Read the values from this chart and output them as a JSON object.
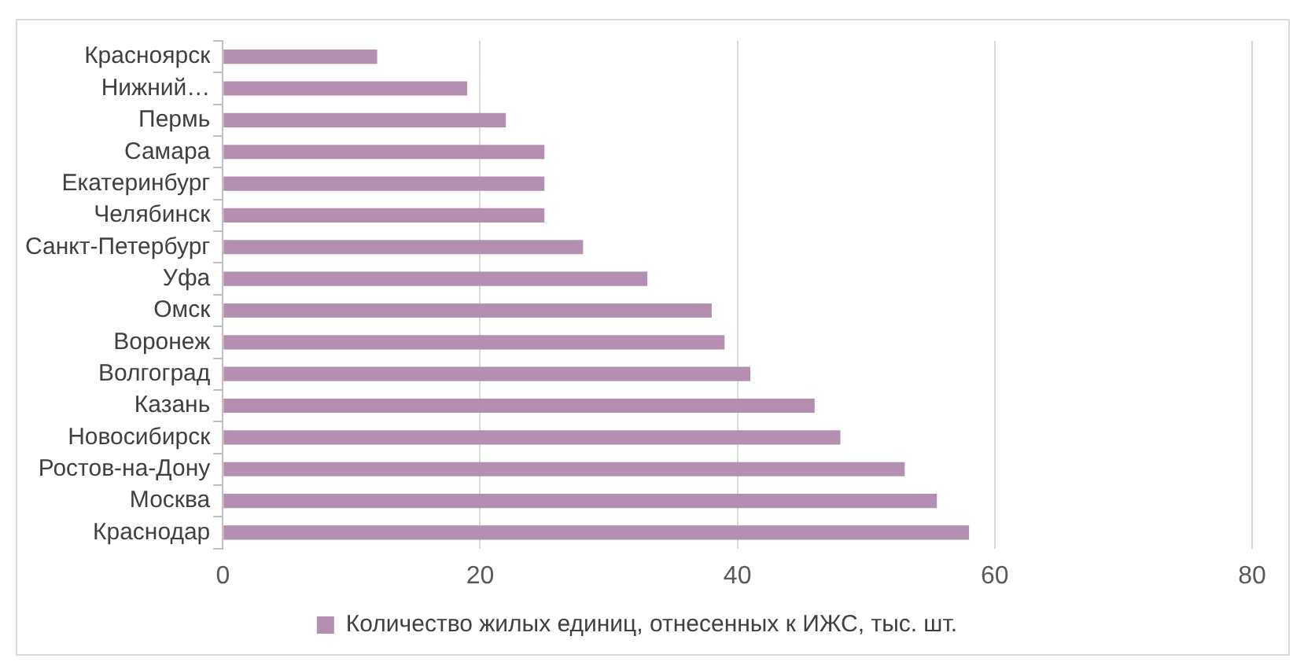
{
  "chart_data": {
    "type": "bar",
    "orientation": "horizontal",
    "categories": [
      "Красноярск",
      "Нижний…",
      "Пермь",
      "Самара",
      "Екатеринбург",
      "Челябинск",
      "Санкт-Петербург",
      "Уфа",
      "Омск",
      "Воронеж",
      "Волгоград",
      "Казань",
      "Новосибирск",
      "Ростов-на-Дону",
      "Москва",
      "Краснодар"
    ],
    "series": [
      {
        "name": "Количество жилых единиц, отнесенных к ИЖС, тыс. шт.",
        "color": "#b48fb0",
        "values": [
          12,
          19,
          22,
          25,
          25,
          25,
          28,
          33,
          38,
          39,
          41,
          46,
          48,
          53,
          55.5,
          58
        ]
      }
    ],
    "xlim": [
      0,
      80
    ],
    "xticks": [
      0,
      20,
      40,
      60,
      80
    ],
    "grid": "x",
    "legend": "bottom"
  }
}
